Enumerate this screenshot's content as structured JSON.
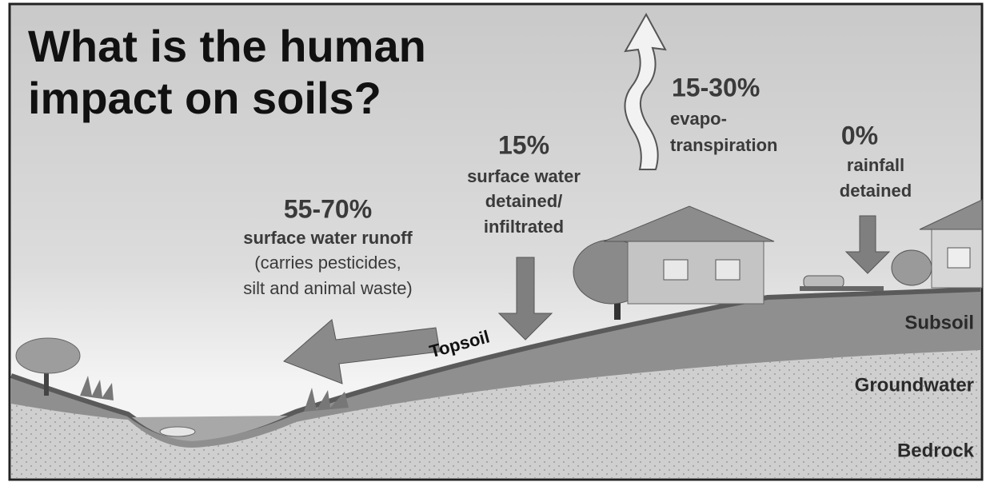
{
  "title": {
    "lines": [
      "What is the human",
      "impact on soils?"
    ]
  },
  "flows": [
    {
      "percent": "55-70%",
      "lines": [
        "surface water runoff"
      ],
      "note": [
        "(carries pesticides,",
        "silt and animal waste)"
      ]
    },
    {
      "percent": "15%",
      "lines": [
        "surface water",
        "detained/",
        "infiltrated"
      ]
    },
    {
      "percent": "15-30%",
      "lines": [
        "evapo-",
        "transpiration"
      ]
    },
    {
      "percent": "0%",
      "lines": [
        "rainfall",
        "detained"
      ]
    }
  ],
  "layers": [
    "Topsoil",
    "Subsoil",
    "Groundwater",
    "Bedrock"
  ]
}
